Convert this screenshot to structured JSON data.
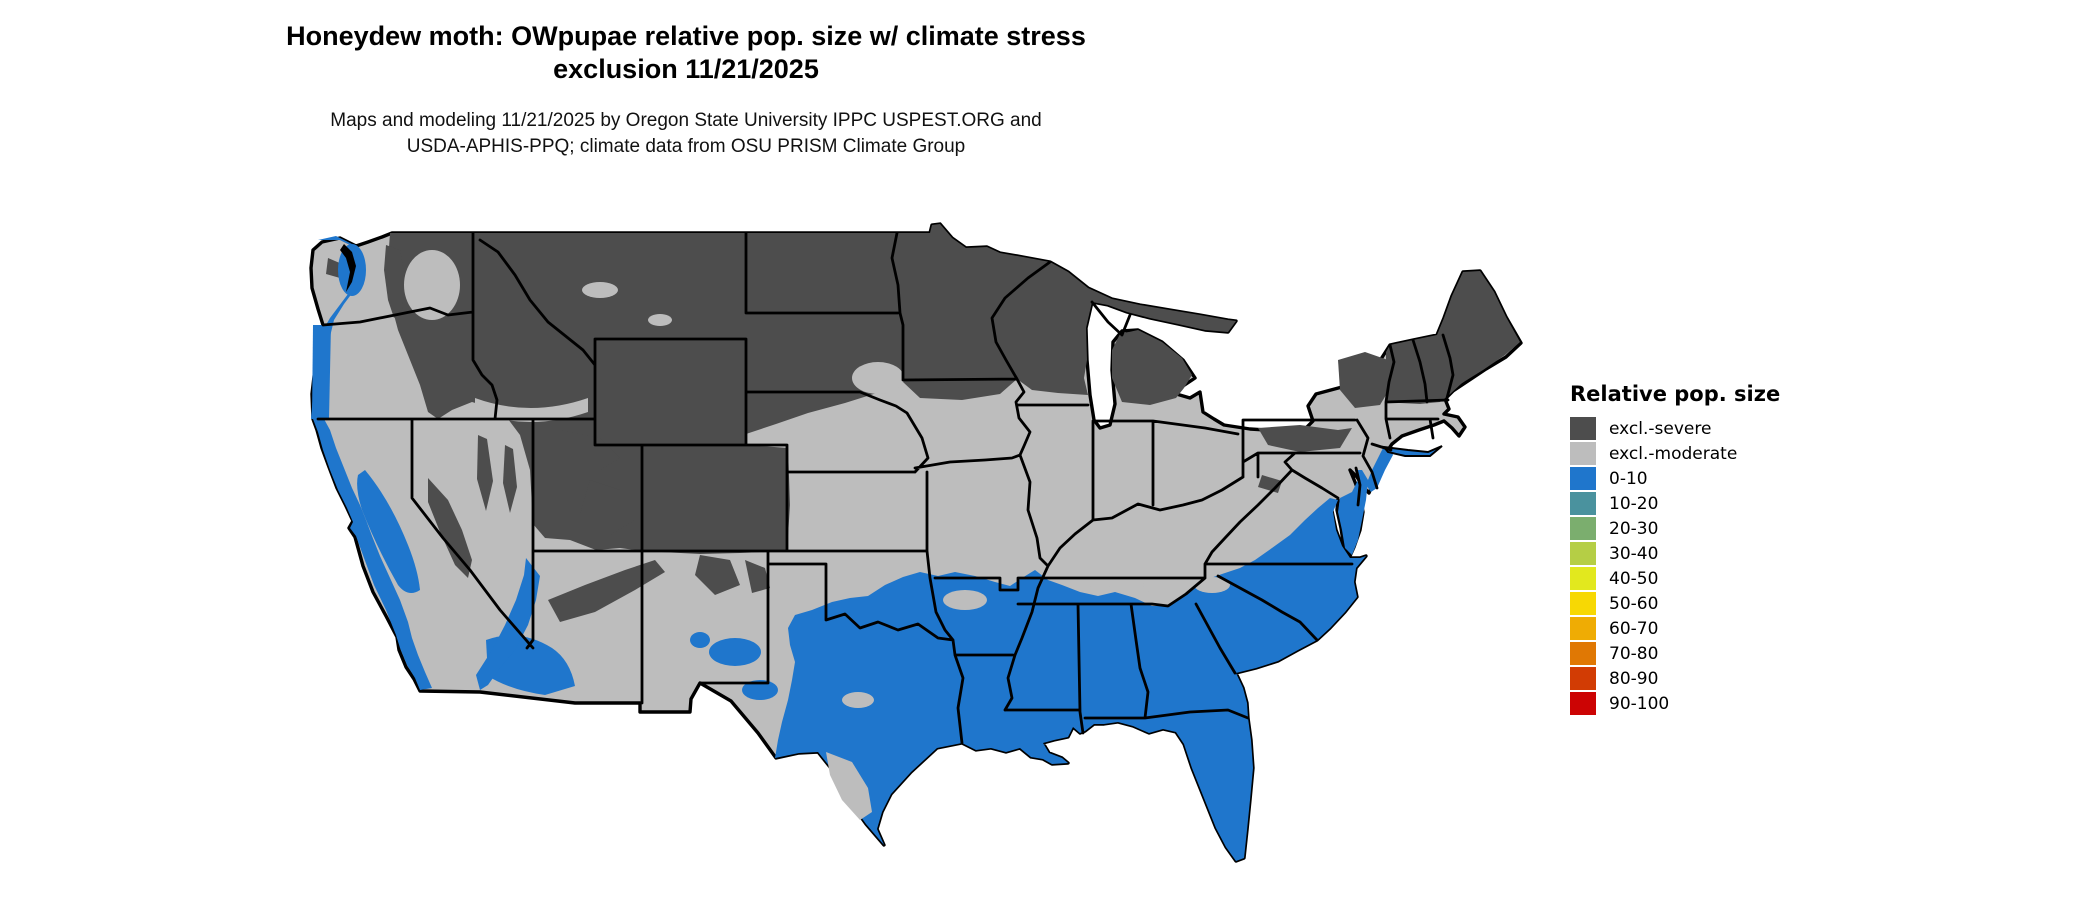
{
  "title": {
    "line1": "Honeydew moth: OWpupae relative pop. size w/ climate stress",
    "line2": "exclusion 11/21/2025"
  },
  "subtitle": {
    "line1": "Maps and modeling 11/21/2025 by Oregon State University IPPC USPEST.ORG and",
    "line2": "USDA-APHIS-PPQ; climate data from OSU PRISM Climate Group"
  },
  "legend": {
    "title": "Relative pop. size",
    "items": [
      {
        "label": "excl.-severe",
        "color": "#4d4d4d"
      },
      {
        "label": "excl.-moderate",
        "color": "#bdbdbd"
      },
      {
        "label": "0-10",
        "color": "#1f76cc"
      },
      {
        "label": "10-20",
        "color": "#4a929e"
      },
      {
        "label": "20-30",
        "color": "#7bae6e"
      },
      {
        "label": "30-40",
        "color": "#b5ce45"
      },
      {
        "label": "40-50",
        "color": "#e2e81e"
      },
      {
        "label": "50-60",
        "color": "#f7d804"
      },
      {
        "label": "60-70",
        "color": "#efac04"
      },
      {
        "label": "70-80",
        "color": "#e07804"
      },
      {
        "label": "80-90",
        "color": "#d23c04"
      },
      {
        "label": "90-100",
        "color": "#cc0404"
      }
    ]
  },
  "map": {
    "colors": {
      "severe": "#4d4d4d",
      "moderate": "#bdbdbd",
      "low": "#1f76cc",
      "outline": "#000000",
      "water": "#ffffff"
    }
  }
}
